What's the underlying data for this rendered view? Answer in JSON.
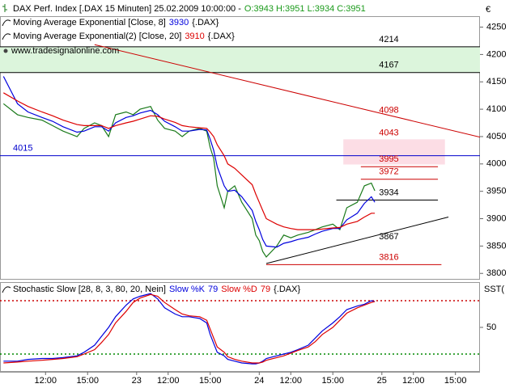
{
  "chart_data": [
    {
      "type": "line",
      "title": "DAX Perf. Index [.DAX  15 Minuten] 25.02.2009 10:00:00 -",
      "quote": "O:3943 H:3951 L:3934 C:3951",
      "currency": "€",
      "watermark": "www.tradesignalonline.com",
      "x": [
        1,
        5,
        8,
        12,
        15,
        18,
        22,
        24,
        27,
        29,
        31,
        33,
        36,
        38,
        40,
        43,
        45,
        47,
        50,
        52,
        54,
        57,
        59,
        60,
        61,
        62,
        64,
        65,
        67,
        69,
        72,
        73,
        74,
        75,
        76,
        79,
        81,
        83,
        85,
        88,
        90,
        92,
        95,
        97,
        99,
        102,
        104,
        106,
        107
      ],
      "xlim": [
        0,
        137
      ],
      "ylim": [
        3790,
        4270
      ],
      "yticks": [
        3800,
        3850,
        3900,
        3950,
        4000,
        4050,
        4100,
        4150,
        4200,
        4250
      ],
      "series": [
        {
          "color": "#1a7a1a",
          "values": [
            4110,
            4090,
            4085,
            4080,
            4070,
            4060,
            4050,
            4065,
            4075,
            4070,
            4050,
            4090,
            4095,
            4090,
            4100,
            4105,
            4080,
            4065,
            4060,
            4050,
            4060,
            4065,
            4060,
            4030,
            4010,
            3960,
            3920,
            3950,
            3960,
            3930,
            3900,
            3870,
            3860,
            3840,
            3830,
            3850,
            3870,
            3865,
            3870,
            3875,
            3880,
            3885,
            3890,
            3880,
            3920,
            3930,
            3960,
            3965,
            3951
          ]
        },
        {
          "name": "Moving Average Exponential [Close, 8]",
          "value_label": "3930",
          "source": "{.DAX}",
          "color": "#0000dd",
          "values": [
            4160,
            4110,
            4095,
            4085,
            4078,
            4068,
            4058,
            4060,
            4068,
            4068,
            4060,
            4075,
            4085,
            4088,
            4093,
            4098,
            4090,
            4078,
            4068,
            4060,
            4060,
            4063,
            4062,
            4045,
            4025,
            3995,
            3960,
            3950,
            3952,
            3940,
            3915,
            3895,
            3880,
            3862,
            3850,
            3848,
            3855,
            3858,
            3862,
            3866,
            3872,
            3877,
            3882,
            3882,
            3898,
            3910,
            3928,
            3940,
            3930
          ]
        },
        {
          "name": "Moving Average Exponential(2) [Close, 20]",
          "value_label": "3910",
          "source": "{.DAX}",
          "color": "#dd0000",
          "values": [
            4130,
            4115,
            4105,
            4095,
            4088,
            4080,
            4072,
            4070,
            4070,
            4070,
            4065,
            4070,
            4075,
            4078,
            4082,
            4088,
            4087,
            4082,
            4076,
            4070,
            4068,
            4066,
            4065,
            4058,
            4050,
            4035,
            4015,
            4000,
            3992,
            3980,
            3962,
            3945,
            3930,
            3915,
            3900,
            3890,
            3885,
            3882,
            3880,
            3880,
            3880,
            3881,
            3883,
            3884,
            3890,
            3895,
            3903,
            3910,
            3910
          ]
        }
      ],
      "bands": [
        {
          "from": 4214,
          "to": 4167,
          "color": "#dcf5dc"
        },
        {
          "from": 4045,
          "to": 3999,
          "color": "#fcdde5",
          "x": [
            98,
            127
          ]
        }
      ],
      "levels": [
        {
          "value": 4214,
          "color": "#000000"
        },
        {
          "value": 4167,
          "color": "#000000"
        },
        {
          "value": 4043,
          "color": "#cc0000",
          "style": "label"
        },
        {
          "value": 4015,
          "color": "#0000cc",
          "label_side": "left"
        },
        {
          "value": 3995,
          "color": "#cc0000",
          "x": [
            103,
            125
          ]
        },
        {
          "value": 3972,
          "color": "#cc0000",
          "x": [
            103,
            125
          ]
        },
        {
          "value": 3934,
          "color": "#000000",
          "x": [
            96,
            125
          ]
        },
        {
          "value": 3816,
          "color": "#cc0000",
          "x": [
            76,
            126
          ]
        }
      ],
      "trendlines": [
        {
          "x": [
            27,
            137
          ],
          "y": [
            4218,
            4049
          ],
          "color": "#cc0000",
          "label": 4098
        },
        {
          "x": [
            76,
            128
          ],
          "y": [
            3818,
            3903
          ],
          "color": "#000000",
          "label": 3867
        }
      ]
    },
    {
      "type": "line",
      "title": "Stochastic Slow [28, 8, 3, 80, 20, Nein]",
      "source": "{.DAX}",
      "axis_title": "SST(",
      "x": [
        1,
        5,
        8,
        12,
        15,
        18,
        22,
        24,
        27,
        29,
        31,
        33,
        36,
        38,
        40,
        43,
        45,
        47,
        50,
        52,
        54,
        57,
        59,
        60,
        61,
        62,
        64,
        65,
        67,
        69,
        72,
        73,
        74,
        75,
        76,
        79,
        81,
        83,
        85,
        88,
        90,
        92,
        95,
        97,
        99,
        102,
        104,
        106,
        107
      ],
      "xlim": [
        0,
        137
      ],
      "xticks": [
        {
          "value": 13,
          "label": "12:00"
        },
        {
          "value": 25,
          "label": "15:00"
        },
        23,
        {
          "value": 48,
          "label": "12:00"
        },
        {
          "value": 60,
          "label": "15:00"
        },
        24,
        {
          "value": 83,
          "label": "12:00"
        },
        {
          "value": 95,
          "label": "15:00"
        },
        25,
        {
          "value": 118,
          "label": "12:00"
        },
        {
          "value": 130,
          "label": "15:00"
        }
      ],
      "xtick_positions": [
        13,
        25,
        39,
        48,
        60,
        74,
        83,
        95,
        109,
        118,
        130
      ],
      "ylim": [
        0,
        100
      ],
      "yticks": [
        50
      ],
      "series": [
        {
          "name": "Slow %K",
          "value_label": "79",
          "color": "#0000dd",
          "values": [
            12,
            12,
            14,
            15,
            15,
            16,
            18,
            22,
            30,
            40,
            50,
            62,
            75,
            82,
            85,
            88,
            82,
            72,
            65,
            62,
            62,
            60,
            55,
            42,
            32,
            22,
            18,
            14,
            12,
            10,
            9,
            9,
            10,
            12,
            15,
            18,
            20,
            22,
            25,
            30,
            38,
            46,
            55,
            62,
            70,
            74,
            76,
            80,
            79
          ]
        },
        {
          "name": "Slow %D",
          "value_label": "79",
          "color": "#dd0000",
          "values": [
            10,
            11,
            12,
            13,
            14,
            15,
            17,
            20,
            25,
            33,
            42,
            55,
            68,
            78,
            83,
            87,
            85,
            78,
            70,
            65,
            63,
            62,
            58,
            48,
            38,
            28,
            22,
            17,
            14,
            12,
            10,
            10,
            10,
            11,
            13,
            16,
            18,
            21,
            24,
            28,
            34,
            42,
            50,
            58,
            66,
            72,
            75,
            78,
            79
          ]
        }
      ],
      "levels": [
        {
          "value": 80,
          "color": "#cc0000",
          "style": "dotted"
        },
        {
          "value": 20,
          "color": "#008800",
          "style": "dotted"
        }
      ]
    }
  ]
}
